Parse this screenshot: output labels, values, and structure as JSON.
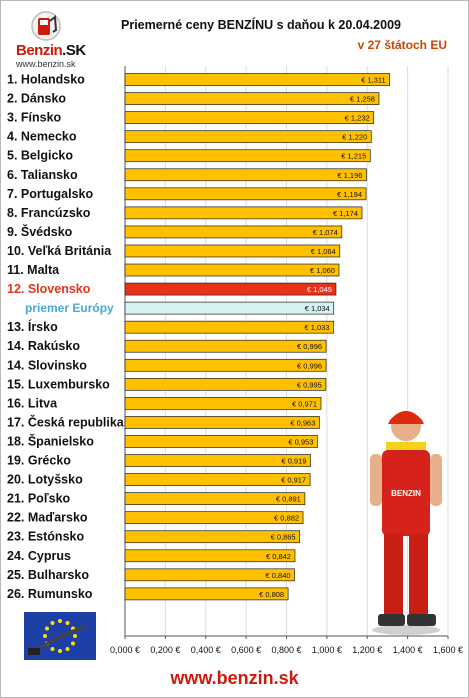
{
  "header": {
    "logo_brand": "Benzin",
    "logo_brand_suffix": ".SK",
    "logo_url": "www.benzin.sk",
    "title": "Priemerné ceny BENZÍNU s daňou k 20.04.2009",
    "subtitle": "v 27 štátoch EU"
  },
  "footer": {
    "url": "www.benzin.sk"
  },
  "colors": {
    "bar": "#ffc000",
    "bar_highlight": "#e8321a",
    "bar_average": "#d4f2f0",
    "highlight_text": "#e8321a",
    "average_text": "#4aa8d8",
    "plot_background": "#ffffff",
    "grid": "#dddddd"
  },
  "chart_data": {
    "type": "bar",
    "orientation": "horizontal",
    "title": "Priemerné ceny BENZÍNU s daňou k 20.04.2009",
    "subtitle": "v 27 štátoch EU",
    "categories": [
      "1. Holandsko",
      "2. Dánsko",
      "3. Fínsko",
      "4. Nemecko",
      "5. Belgicko",
      "6. Taliansko",
      "7. Portugalsko",
      "8. Francúzsko",
      "9. Švédsko",
      "10. Veľká Británia",
      "11. Malta",
      "12. Slovensko",
      "priemer Európy",
      "13. Írsko",
      "14. Rakúsko",
      "14. Slovinsko",
      "15. Luxembursko",
      "16. Litva",
      "17. Česká republika",
      "18. Španielsko",
      "19. Grécko",
      "20. Lotyšsko",
      "21. Poľsko",
      "22. Maďarsko",
      "23. Estónsko",
      "24. Cyprus",
      "25. Bulharsko",
      "26. Rumunsko"
    ],
    "values": [
      1.311,
      1.258,
      1.232,
      1.22,
      1.215,
      1.196,
      1.194,
      1.174,
      1.074,
      1.064,
      1.06,
      1.045,
      1.034,
      1.033,
      0.996,
      0.996,
      0.995,
      0.971,
      0.963,
      0.953,
      0.919,
      0.917,
      0.891,
      0.882,
      0.865,
      0.842,
      0.84,
      0.808
    ],
    "value_labels": [
      "€ 1,311",
      "€ 1,258",
      "€ 1,232",
      "€ 1,220",
      "€ 1,215",
      "€ 1,196",
      "€ 1,194",
      "€ 1,174",
      "€ 1,074",
      "€ 1,064",
      "€ 1,060",
      "€ 1,045",
      "€ 1,034",
      "€ 1,033",
      "€ 0,996",
      "€ 0,996",
      "€ 0,995",
      "€ 0,971",
      "€ 0,963",
      "€ 0,953",
      "€ 0,919",
      "€ 0,917",
      "€ 0,891",
      "€ 0,882",
      "€ 0,865",
      "€ 0,842",
      "€ 0,840",
      "€ 0,808"
    ],
    "highlight": "12. Slovensko",
    "average": "priemer Európy",
    "xlim": [
      0,
      1.6
    ],
    "xticks": [
      0,
      0.2,
      0.4,
      0.6,
      0.8,
      1.0,
      1.2,
      1.4,
      1.6
    ],
    "xtick_labels": [
      "0,000 €",
      "0,200 €",
      "0,400 €",
      "0,600 €",
      "0,800 €",
      "1,000 €",
      "1,200 €",
      "1,400 €",
      "1,600 €"
    ],
    "grid": true
  }
}
